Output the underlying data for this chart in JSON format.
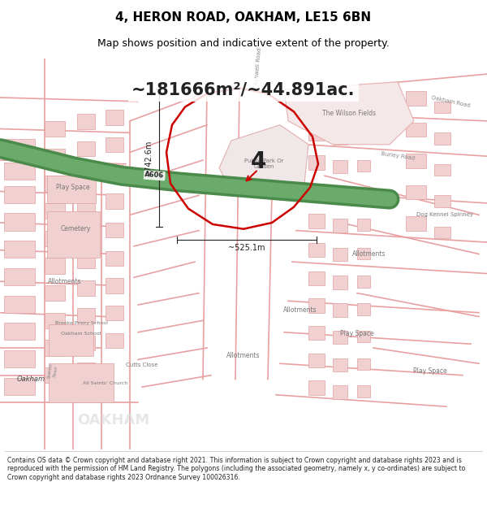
{
  "title_line1": "4, HERON ROAD, OAKHAM, LE15 6BN",
  "title_line2": "Map shows position and indicative extent of the property.",
  "area_text": "~181666m²/~44.891ac.",
  "label_4": "4",
  "dim_vertical": "~742.6m",
  "dim_horizontal": "~525.1m",
  "footer_text": "Contains OS data © Crown copyright and database right 2021. This information is subject to Crown copyright and database rights 2023 and is reproduced with the permission of HM Land Registry. The polygons (including the associated geometry, namely x, y co-ordinates) are subject to Crown copyright and database rights 2023 Ordnance Survey 100026316.",
  "bg_color": "#ffffff",
  "map_bg": "#f8f0f0",
  "property_outline_color": "#cc0000"
}
